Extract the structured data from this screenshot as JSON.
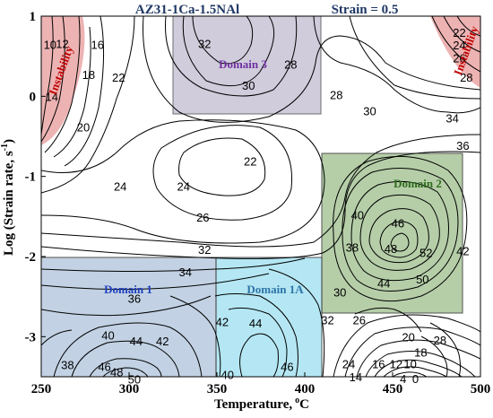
{
  "chart_data": {
    "type": "contour",
    "title": "AZ31-1Ca-1.5NAl",
    "subtitle": "Strain = 0.5",
    "xlabel": "Temperature, °C",
    "xlabel_text": "Temperature,",
    "xlabel_unit_sup": "o",
    "xlabel_unit": "C",
    "ylabel": "Log (Strain rate, s⁻¹)",
    "ylabel_text": "Log (Strain rate, s",
    "ylabel_sup": "-1",
    "ylabel_close": ")",
    "xlim": [
      250,
      500
    ],
    "ylim": [
      -3.5,
      1
    ],
    "xticks": [
      "250",
      "300",
      "350",
      "400",
      "450",
      "500"
    ],
    "yticks": [
      "1",
      "0",
      "-1",
      "-2",
      "-3"
    ],
    "contour_labels": [
      {
        "text": "10",
        "x": 255,
        "y": 0.65
      },
      {
        "text": "12",
        "x": 262,
        "y": 0.66
      },
      {
        "text": "16",
        "x": 282,
        "y": 0.65
      },
      {
        "text": "18",
        "x": 277,
        "y": 0.27
      },
      {
        "text": "22",
        "x": 294,
        "y": 0.24
      },
      {
        "text": "14",
        "x": 256,
        "y": 0.0
      },
      {
        "text": "20",
        "x": 274,
        "y": -0.38
      },
      {
        "text": "32",
        "x": 343,
        "y": 0.66
      },
      {
        "text": "28",
        "x": 392,
        "y": 0.4
      },
      {
        "text": "30",
        "x": 368,
        "y": 0.14
      },
      {
        "text": "28",
        "x": 418,
        "y": 0.02
      },
      {
        "text": "30",
        "x": 437,
        "y": -0.18
      },
      {
        "text": "34",
        "x": 484,
        "y": -0.27
      },
      {
        "text": "36",
        "x": 490,
        "y": -0.61
      },
      {
        "text": "22",
        "x": 488,
        "y": 0.8
      },
      {
        "text": "24",
        "x": 488,
        "y": 0.64
      },
      {
        "text": "26",
        "x": 488,
        "y": 0.48
      },
      {
        "text": "28",
        "x": 492,
        "y": 0.24
      },
      {
        "text": "22",
        "x": 369,
        "y": -0.81
      },
      {
        "text": "24",
        "x": 295,
        "y": -1.12
      },
      {
        "text": "24",
        "x": 331,
        "y": -1.12
      },
      {
        "text": "26",
        "x": 342,
        "y": -1.51
      },
      {
        "text": "32",
        "x": 343,
        "y": -1.91
      },
      {
        "text": "34",
        "x": 332,
        "y": -2.19
      },
      {
        "text": "36",
        "x": 303,
        "y": -2.52
      },
      {
        "text": "40",
        "x": 288,
        "y": -2.98
      },
      {
        "text": "44",
        "x": 304,
        "y": -3.05
      },
      {
        "text": "42",
        "x": 319,
        "y": -3.05
      },
      {
        "text": "38",
        "x": 265,
        "y": -3.35
      },
      {
        "text": "46",
        "x": 286,
        "y": -3.37
      },
      {
        "text": "48",
        "x": 293,
        "y": -3.44
      },
      {
        "text": "50",
        "x": 303,
        "y": -3.53
      },
      {
        "text": "42",
        "x": 353,
        "y": -2.81
      },
      {
        "text": "44",
        "x": 372,
        "y": -2.83
      },
      {
        "text": "40",
        "x": 356,
        "y": -3.47
      },
      {
        "text": "46",
        "x": 390,
        "y": -3.37
      },
      {
        "text": "30",
        "x": 420,
        "y": -2.44
      },
      {
        "text": "32",
        "x": 413,
        "y": -2.79
      },
      {
        "text": "26",
        "x": 431,
        "y": -2.79
      },
      {
        "text": "40",
        "x": 430,
        "y": -1.48
      },
      {
        "text": "46",
        "x": 453,
        "y": -1.58
      },
      {
        "text": "38",
        "x": 427,
        "y": -1.88
      },
      {
        "text": "48",
        "x": 449,
        "y": -1.9
      },
      {
        "text": "52",
        "x": 469,
        "y": -1.95
      },
      {
        "text": "42",
        "x": 490,
        "y": -1.93
      },
      {
        "text": "44",
        "x": 445,
        "y": -2.33
      },
      {
        "text": "50",
        "x": 467,
        "y": -2.28
      },
      {
        "text": "20",
        "x": 459,
        "y": -3.0
      },
      {
        "text": "28",
        "x": 477,
        "y": -3.04
      },
      {
        "text": "18",
        "x": 466,
        "y": -3.19
      },
      {
        "text": "24",
        "x": 425,
        "y": -3.34
      },
      {
        "text": "16",
        "x": 442,
        "y": -3.34
      },
      {
        "text": "12",
        "x": 452,
        "y": -3.34
      },
      {
        "text": "10",
        "x": 460,
        "y": -3.34
      },
      {
        "text": "14",
        "x": 429,
        "y": -3.5
      },
      {
        "text": "4",
        "x": 456,
        "y": -3.52
      },
      {
        "text": "0",
        "x": 463,
        "y": -3.52
      }
    ],
    "regions": [
      {
        "name": "Instability",
        "label": "Instability"
      },
      {
        "name": "Domain 3",
        "label": "Domain 3",
        "x": [
          325,
          398
        ],
        "y": [
          -0.18,
          1
        ]
      },
      {
        "name": "Domain 2",
        "label": "Domain 2",
        "x": [
          410,
          490
        ],
        "y": [
          -0.7,
          -2.7
        ]
      },
      {
        "name": "Domain 1",
        "label": "Domain 1",
        "x": [
          250,
          350
        ],
        "y": [
          -2,
          -3.5
        ]
      },
      {
        "name": "Domain 1A",
        "label": "Domain 1A",
        "x": [
          350,
          410
        ],
        "y": [
          -2,
          -3.5
        ]
      },
      {
        "name": "Instability right",
        "label": "Instability"
      }
    ],
    "colors": {
      "instability": "#e8a0a0",
      "domain3": "#c8c4d6",
      "domain2": "#a9c69a",
      "domain1": "#b8cbe0",
      "domain1a": "#a7e3f2",
      "domain3_text": "#7030a0",
      "domain2_text": "#2f6b1c",
      "domain1_text": "#1f3fbf",
      "domain1a_text": "#2e74a8",
      "instability_text": "#c00000",
      "header_text": "#1f3864"
    }
  }
}
